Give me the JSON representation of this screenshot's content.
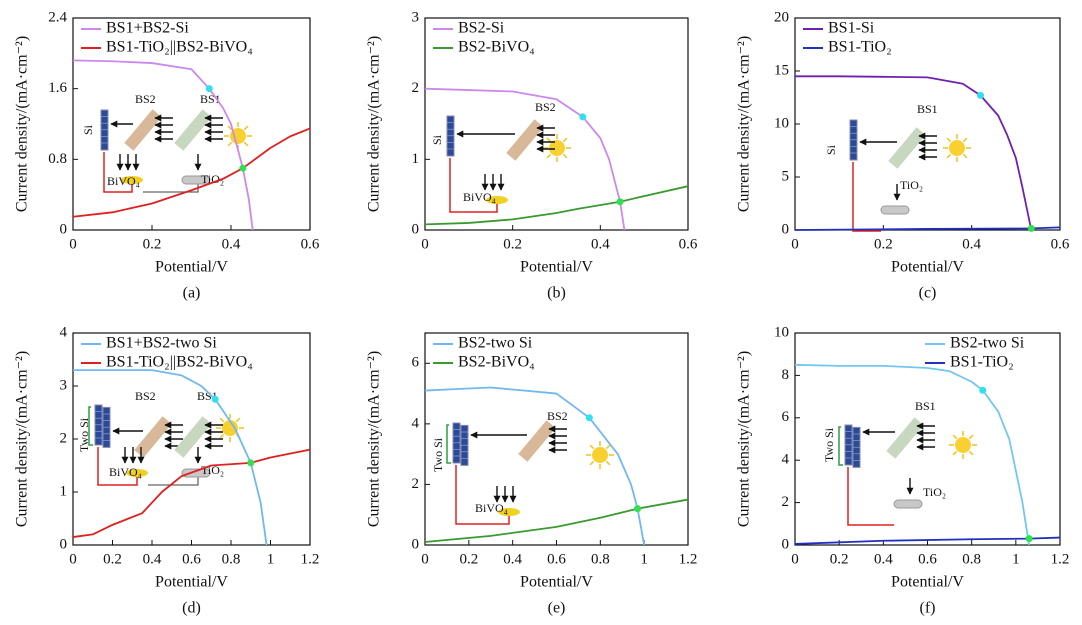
{
  "chart_data": [
    {
      "type": "line",
      "caption": "(a)",
      "x_label": "Potential/V",
      "y_label": "Current density/(mA·cm⁻²)",
      "xlim": [
        0,
        0.6
      ],
      "xticks": [
        0,
        0.2,
        0.4,
        0.6
      ],
      "ylim": [
        0,
        2.4
      ],
      "yticks": [
        0,
        0.8,
        1.6,
        2.4
      ],
      "legend": "upper left",
      "series": [
        {
          "name": "BS1+BS2-Si",
          "color": "#cc88ee",
          "x": [
            0,
            0.1,
            0.2,
            0.3,
            0.345,
            0.38,
            0.4,
            0.43,
            0.445,
            0.455
          ],
          "values": [
            1.92,
            1.91,
            1.89,
            1.82,
            1.6,
            1.38,
            1.2,
            0.7,
            0.35,
            0
          ]
        },
        {
          "name": "BS1-TiO₂||BS2-BiVO₄",
          "color": "#e02020",
          "x": [
            0,
            0.1,
            0.2,
            0.3,
            0.38,
            0.43,
            0.5,
            0.55,
            0.6
          ],
          "values": [
            0.15,
            0.2,
            0.3,
            0.45,
            0.58,
            0.7,
            0.93,
            1.06,
            1.15
          ]
        }
      ],
      "points": [
        {
          "x": 0.345,
          "y": 1.6,
          "color": "#30e0f0"
        },
        {
          "x": 0.43,
          "y": 0.7,
          "color": "#30e050"
        }
      ],
      "annotations": [
        "Si",
        "BS2",
        "BS1",
        "BiVO₄",
        "TiO₂"
      ]
    },
    {
      "type": "line",
      "caption": "(b)",
      "x_label": "Potential/V",
      "y_label": "Current density/(mA·cm⁻²)",
      "xlim": [
        0,
        0.6
      ],
      "xticks": [
        0,
        0.2,
        0.4,
        0.6
      ],
      "ylim": [
        0,
        3
      ],
      "yticks": [
        0,
        1,
        2,
        3
      ],
      "legend": "upper left",
      "series": [
        {
          "name": "BS2-Si",
          "color": "#cc88ee",
          "x": [
            0,
            0.1,
            0.2,
            0.3,
            0.36,
            0.4,
            0.42,
            0.445,
            0.455
          ],
          "values": [
            2.0,
            1.98,
            1.96,
            1.85,
            1.6,
            1.3,
            1.0,
            0.4,
            0
          ]
        },
        {
          "name": "BS2-BiVO₄",
          "color": "#3a9a30",
          "x": [
            0,
            0.1,
            0.2,
            0.3,
            0.35,
            0.445,
            0.5,
            0.6
          ],
          "values": [
            0.08,
            0.1,
            0.15,
            0.24,
            0.3,
            0.4,
            0.48,
            0.62
          ]
        }
      ],
      "points": [
        {
          "x": 0.36,
          "y": 1.6,
          "color": "#30e0f0"
        },
        {
          "x": 0.445,
          "y": 0.4,
          "color": "#30e050"
        }
      ],
      "annotations": [
        "BS2",
        "Si",
        "BiVO₄"
      ]
    },
    {
      "type": "line",
      "caption": "(c)",
      "x_label": "Potential/V",
      "y_label": "Current density/(mA·cm⁻²)",
      "xlim": [
        0,
        0.6
      ],
      "xticks": [
        0,
        0.2,
        0.4,
        0.6
      ],
      "ylim": [
        0,
        20
      ],
      "yticks": [
        0,
        5,
        10,
        15,
        20
      ],
      "legend": "upper left",
      "series": [
        {
          "name": "BS1-Si",
          "color": "#7020b0",
          "x": [
            0,
            0.1,
            0.2,
            0.3,
            0.38,
            0.42,
            0.46,
            0.48,
            0.5,
            0.515,
            0.535
          ],
          "values": [
            14.5,
            14.5,
            14.45,
            14.4,
            13.8,
            12.7,
            10.8,
            9,
            6.8,
            4,
            0
          ]
        },
        {
          "name": "BS1-TiO₂",
          "color": "#2030c0",
          "x": [
            0,
            0.3,
            0.535,
            0.6
          ],
          "values": [
            0,
            0.1,
            0.15,
            0.25
          ]
        }
      ],
      "points": [
        {
          "x": 0.42,
          "y": 12.7,
          "color": "#30e0f0"
        },
        {
          "x": 0.535,
          "y": 0.15,
          "color": "#30e050"
        }
      ],
      "annotations": [
        "BS1",
        "Si",
        "TiO₂"
      ]
    },
    {
      "type": "line",
      "caption": "(d)",
      "x_label": "Potential/V",
      "y_label": "Current density/(mA·cm⁻²)",
      "xlim": [
        0,
        1.2
      ],
      "xticks": [
        0,
        0.2,
        0.4,
        0.6,
        0.8,
        1.0,
        1.2
      ],
      "ylim": [
        0,
        4
      ],
      "yticks": [
        0,
        1,
        2,
        3,
        4
      ],
      "legend": "upper left",
      "series": [
        {
          "name": "BS1+BS2-two Si",
          "color": "#70b8f0",
          "x": [
            0,
            0.2,
            0.4,
            0.55,
            0.65,
            0.72,
            0.82,
            0.9,
            0.95,
            0.98
          ],
          "values": [
            3.3,
            3.3,
            3.3,
            3.2,
            3.0,
            2.75,
            2.2,
            1.55,
            0.8,
            0
          ]
        },
        {
          "name": "BS1-TiO₂||BS2-BiVO₄",
          "color": "#e02020",
          "x": [
            0,
            0.1,
            0.2,
            0.35,
            0.45,
            0.55,
            0.7,
            0.9,
            1.0,
            1.2
          ],
          "values": [
            0.15,
            0.2,
            0.38,
            0.6,
            1.0,
            1.3,
            1.5,
            1.55,
            1.65,
            1.8
          ]
        }
      ],
      "points": [
        {
          "x": 0.72,
          "y": 2.75,
          "color": "#30e0f0"
        },
        {
          "x": 0.9,
          "y": 1.55,
          "color": "#30e050"
        }
      ],
      "annotations": [
        "BS2",
        "BS1",
        "Two Si",
        "BiVO₄",
        "TiO₂"
      ]
    },
    {
      "type": "line",
      "caption": "(e)",
      "x_label": "Potential/V",
      "y_label": "Current density/(mA·cm⁻²)",
      "xlim": [
        0,
        1.2
      ],
      "xticks": [
        0,
        0.2,
        0.4,
        0.6,
        0.8,
        1.0,
        1.2
      ],
      "ylim": [
        0,
        7
      ],
      "yticks": [
        0,
        2,
        4,
        6
      ],
      "legend": "upper left",
      "series": [
        {
          "name": "BS2-two Si",
          "color": "#70b8f0",
          "x": [
            0,
            0.15,
            0.3,
            0.45,
            0.6,
            0.75,
            0.88,
            0.94,
            0.97,
            1.0
          ],
          "values": [
            5.1,
            5.15,
            5.2,
            5.1,
            5.0,
            4.2,
            3.0,
            2.0,
            1.2,
            0
          ]
        },
        {
          "name": "BS2-BiVO₄",
          "color": "#3a9a30",
          "x": [
            0,
            0.3,
            0.6,
            0.8,
            0.97,
            1.2
          ],
          "values": [
            0.1,
            0.3,
            0.6,
            0.9,
            1.2,
            1.5
          ]
        }
      ],
      "points": [
        {
          "x": 0.75,
          "y": 4.2,
          "color": "#30e0f0"
        },
        {
          "x": 0.97,
          "y": 1.2,
          "color": "#30e050"
        }
      ],
      "annotations": [
        "BS2",
        "Two Si",
        "BiVO₄"
      ]
    },
    {
      "type": "line",
      "caption": "(f)",
      "x_label": "Potential/V",
      "y_label": "Current density/(mA·cm⁻²)",
      "xlim": [
        0,
        1.2
      ],
      "xticks": [
        0,
        0.2,
        0.4,
        0.6,
        0.8,
        1.0,
        1.2
      ],
      "ylim": [
        0,
        10
      ],
      "yticks": [
        0,
        2,
        4,
        6,
        8,
        10
      ],
      "legend": "upper right",
      "series": [
        {
          "name": "BS2-two Si",
          "color": "#70c8f0",
          "x": [
            0,
            0.2,
            0.4,
            0.6,
            0.7,
            0.8,
            0.85,
            0.92,
            0.97,
            1.03,
            1.06
          ],
          "values": [
            8.5,
            8.45,
            8.45,
            8.35,
            8.2,
            7.7,
            7.3,
            6.3,
            5.0,
            2.0,
            0
          ]
        },
        {
          "name": "BS1-TiO₂",
          "color": "#2030c0",
          "x": [
            0,
            0.4,
            0.8,
            1.06,
            1.2
          ],
          "values": [
            0.05,
            0.2,
            0.27,
            0.3,
            0.35
          ]
        }
      ],
      "points": [
        {
          "x": 0.85,
          "y": 7.3,
          "color": "#30e0f0"
        },
        {
          "x": 1.06,
          "y": 0.3,
          "color": "#30e050"
        }
      ],
      "annotations": [
        "BS1",
        "Two Si",
        "TiO₂"
      ]
    }
  ]
}
